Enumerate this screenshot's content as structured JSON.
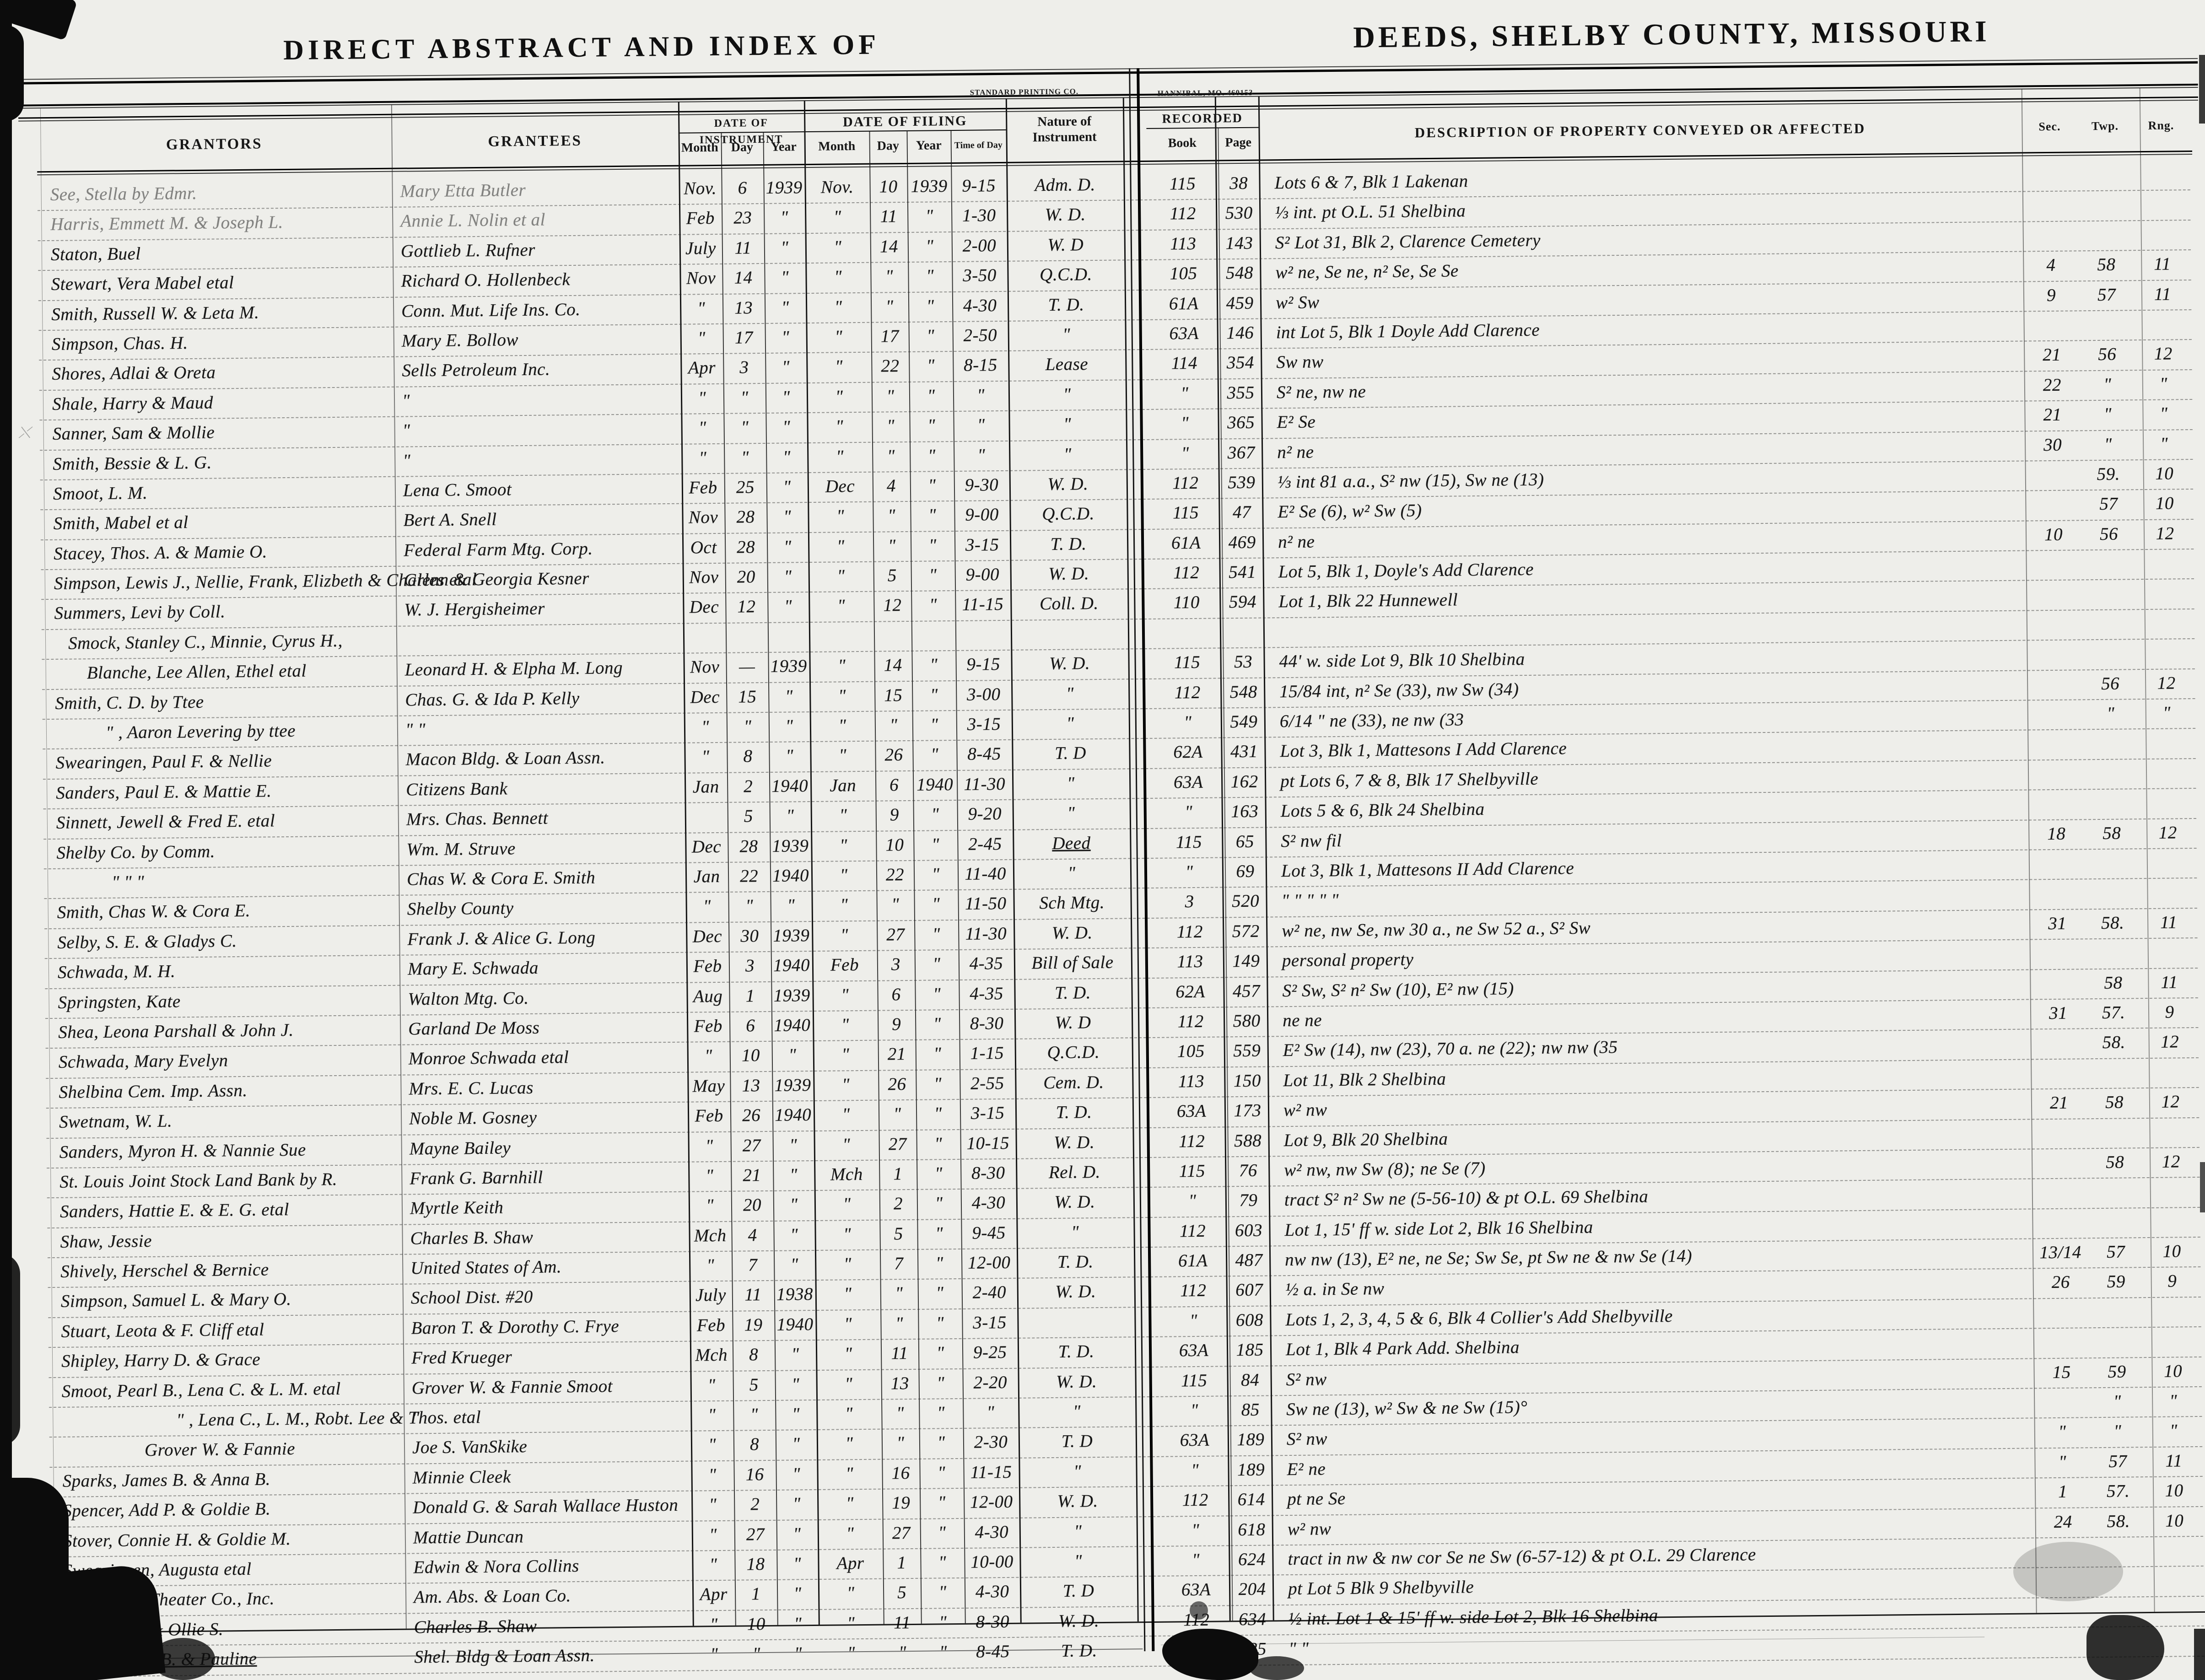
{
  "titles": {
    "left": "DIRECT ABSTRACT AND INDEX OF",
    "right": "DEEDS, SHELBY COUNTY, MISSOURI"
  },
  "printer": {
    "left_small": "STANDARD PRINTING CO.",
    "right_small": "HANNIBAL, MO. 460153"
  },
  "headers": {
    "grantors": "GRANTORS",
    "grantees": "GRANTEES",
    "date_of_instrument": "DATE OF INSTRUMENT",
    "date_of_filing": "DATE OF FILING",
    "month": "Month",
    "day": "Day",
    "year": "Year",
    "time_of_day": "Time of Day",
    "nature": "Nature of Instrument",
    "recorded": "RECORDED",
    "book": "Book",
    "page": "Page",
    "description": "DESCRIPTION OF PROPERTY CONVEYED OR AFFECTED",
    "sec": "Sec.",
    "twp": "Twp.",
    "rng": "Rng."
  },
  "rows": [
    {
      "g": "See, Stella by Edmr.",
      "e": "Mary Etta Butler",
      "im": "Nov.",
      "idy": "6",
      "iy": "1939",
      "fm": "Nov.",
      "fdy": "10",
      "fy": "1939",
      "t": "9-15",
      "n": "Adm. D.",
      "bk": "115",
      "pg": "38",
      "d": "Lots 6 & 7, Blk 1  Lakenan",
      "s": "",
      "tw": "",
      "rg": "",
      "gf": 1,
      "ef": 1
    },
    {
      "g": "Harris, Emmett M. & Joseph L.",
      "e": "Annie L. Nolin et al",
      "im": "Feb",
      "idy": "23",
      "iy": "\"",
      "fm": "\"",
      "fdy": "11",
      "fy": "\"",
      "t": "1-30",
      "n": "W. D.",
      "bk": "112",
      "pg": "530",
      "d": "⅓ int. pt O.L. 51  Shelbina",
      "s": "",
      "tw": "",
      "rg": "",
      "gf": 1,
      "ef": 1
    },
    {
      "g": "Staton, Buel",
      "e": "Gottlieb L. Rufner",
      "im": "July",
      "idy": "11",
      "iy": "\"",
      "fm": "\"",
      "fdy": "14",
      "fy": "\"",
      "t": "2-00",
      "n": "W. D",
      "bk": "113",
      "pg": "143",
      "d": "S² Lot 31, Blk 2, Clarence Cemetery",
      "s": "",
      "tw": "",
      "rg": ""
    },
    {
      "g": "Stewart, Vera Mabel etal",
      "e": "Richard O. Hollenbeck",
      "im": "Nov",
      "idy": "14",
      "iy": "\"",
      "fm": "\"",
      "fdy": "\"",
      "fy": "\"",
      "t": "3-50",
      "n": "Q.C.D.",
      "bk": "105",
      "pg": "548",
      "d": "w² ne, Se ne, n² Se, Se Se",
      "s": "4",
      "tw": "58",
      "rg": "11"
    },
    {
      "g": "Smith, Russell W. & Leta M.",
      "e": "Conn. Mut. Life Ins. Co.",
      "im": "\"",
      "idy": "13",
      "iy": "\"",
      "fm": "\"",
      "fdy": "\"",
      "fy": "\"",
      "t": "4-30",
      "n": "T. D.",
      "bk": "61A",
      "pg": "459",
      "d": "w² Sw",
      "s": "9",
      "tw": "57",
      "rg": "11"
    },
    {
      "g": "Simpson, Chas. H.",
      "e": "Mary E. Bollow",
      "im": "\"",
      "idy": "17",
      "iy": "\"",
      "fm": "\"",
      "fdy": "17",
      "fy": "\"",
      "t": "2-50",
      "n": "\"",
      "bk": "63A",
      "pg": "146",
      "d": "int Lot 5, Blk 1  Doyle Add  Clarence",
      "s": "",
      "tw": "",
      "rg": ""
    },
    {
      "g": "Shores, Adlai & Oreta",
      "e": "Sells Petroleum Inc.",
      "im": "Apr",
      "idy": "3",
      "iy": "\"",
      "fm": "\"",
      "fdy": "22",
      "fy": "\"",
      "t": "8-15",
      "n": "Lease",
      "bk": "114",
      "pg": "354",
      "d": "Sw nw",
      "s": "21",
      "tw": "56",
      "rg": "12"
    },
    {
      "g": "Shale, Harry & Maud",
      "e": "\"",
      "im": "\"",
      "idy": "\"",
      "iy": "\"",
      "fm": "\"",
      "fdy": "\"",
      "fy": "\"",
      "t": "\"",
      "n": "\"",
      "bk": "\"",
      "pg": "355",
      "d": "S² ne, nw ne",
      "s": "22",
      "tw": "\"",
      "rg": "\""
    },
    {
      "g": "Sanner, Sam & Mollie",
      "e": "\"",
      "im": "\"",
      "idy": "\"",
      "iy": "\"",
      "fm": "\"",
      "fdy": "\"",
      "fy": "\"",
      "t": "\"",
      "n": "\"",
      "bk": "\"",
      "pg": "365",
      "d": "E² Se",
      "s": "21",
      "tw": "\"",
      "rg": "\""
    },
    {
      "g": "Smith, Bessie & L. G.",
      "e": "\"",
      "im": "\"",
      "idy": "\"",
      "iy": "\"",
      "fm": "\"",
      "fdy": "\"",
      "fy": "\"",
      "t": "\"",
      "n": "\"",
      "bk": "\"",
      "pg": "367",
      "d": "n² ne",
      "s": "30",
      "tw": "\"",
      "rg": "\""
    },
    {
      "g": "Smoot, L. M.",
      "e": "Lena C. Smoot",
      "im": "Feb",
      "idy": "25",
      "iy": "\"",
      "fm": "Dec",
      "fdy": "4",
      "fy": "\"",
      "t": "9-30",
      "n": "W. D.",
      "bk": "112",
      "pg": "539",
      "d": "⅓ int 81 a.a., S² nw (15), Sw ne (13)",
      "s": "",
      "tw": "59.",
      "rg": "10"
    },
    {
      "g": "Smith, Mabel et al",
      "e": "Bert A. Snell",
      "im": "Nov",
      "idy": "28",
      "iy": "\"",
      "fm": "\"",
      "fdy": "\"",
      "fy": "\"",
      "t": "9-00",
      "n": "Q.C.D.",
      "bk": "115",
      "pg": "47",
      "d": "E² Se (6), w² Sw (5)",
      "s": "",
      "tw": "57",
      "rg": "10"
    },
    {
      "g": "Stacey, Thos. A. & Mamie O.",
      "e": "Federal Farm Mtg. Corp.",
      "im": "Oct",
      "idy": "28",
      "iy": "\"",
      "fm": "\"",
      "fdy": "\"",
      "fy": "\"",
      "t": "3-15",
      "n": "T. D.",
      "bk": "61A",
      "pg": "469",
      "d": "n² ne",
      "s": "10",
      "tw": "56",
      "rg": "12"
    },
    {
      "g": "Simpson, Lewis J., Nellie, Frank, Elizbeth & Charles etal",
      "e": "Glenn & Georgia Kesner",
      "im": "Nov",
      "idy": "20",
      "iy": "\"",
      "fm": "\"",
      "fdy": "5",
      "fy": "\"",
      "t": "9-00",
      "n": "W. D.",
      "bk": "112",
      "pg": "541",
      "d": "Lot 5, Blk 1,  Doyle's Add  Clarence",
      "s": "",
      "tw": "",
      "rg": ""
    },
    {
      "g": "Summers, Levi by Coll.",
      "e": "W. J. Hergisheimer",
      "im": "Dec",
      "idy": "12",
      "iy": "\"",
      "fm": "\"",
      "fdy": "12",
      "fy": "\"",
      "t": "11-15",
      "n": "Coll. D.",
      "bk": "110",
      "pg": "594",
      "d": "Lot 1, Blk 22  Hunnewell",
      "s": "",
      "tw": "",
      "rg": ""
    },
    {
      "g": "Smock, Stanley C., Minnie, Cyrus H.,",
      "e": "",
      "im": "",
      "idy": "",
      "iy": "",
      "fm": "",
      "fdy": "",
      "fy": "",
      "t": "",
      "n": "",
      "bk": "",
      "pg": "",
      "d": "",
      "s": "",
      "tw": "",
      "rg": "",
      "pad": 30
    },
    {
      "g": "Blanche, Lee Allen, Ethel etal",
      "e": "Leonard H. & Elpha M. Long",
      "im": "Nov",
      "idy": "—",
      "iy": "1939",
      "fm": "\"",
      "fdy": "14",
      "fy": "\"",
      "t": "9-15",
      "n": "W. D.",
      "bk": "115",
      "pg": "53",
      "d": "44' w. side Lot 9, Blk 10 Shelbina",
      "s": "",
      "tw": "",
      "rg": "",
      "pad": 70
    },
    {
      "g": "Smith, C. D. by Ttee",
      "e": "Chas. G. & Ida P. Kelly",
      "im": "Dec",
      "idy": "15",
      "iy": "\"",
      "fm": "\"",
      "fdy": "15",
      "fy": "\"",
      "t": "3-00",
      "n": "\"",
      "bk": "112",
      "pg": "548",
      "d": "15/84 int, n² Se (33), nw Sw (34)",
      "s": "",
      "tw": "56",
      "rg": "12"
    },
    {
      "g": "\" , Aaron Levering by ttee",
      "e": "\"    \"",
      "im": "\"",
      "idy": "\"",
      "iy": "\"",
      "fm": "\"",
      "fdy": "\"",
      "fy": "\"",
      "t": "3-15",
      "n": "\"",
      "bk": "\"",
      "pg": "549",
      "d": "6/14 \" ne (33), ne nw (33",
      "s": "",
      "tw": "\"",
      "rg": "\"",
      "pad": 110
    },
    {
      "g": "Swearingen, Paul F. & Nellie",
      "e": "Macon Bldg. & Loan Assn.",
      "im": "\"",
      "idy": "8",
      "iy": "\"",
      "fm": "\"",
      "fdy": "26",
      "fy": "\"",
      "t": "8-45",
      "n": "T. D",
      "bk": "62A",
      "pg": "431",
      "d": "Lot 3, Blk 1,  Mattesons I  Add  Clarence",
      "s": "",
      "tw": "",
      "rg": ""
    },
    {
      "g": "Sanders, Paul E. & Mattie E.",
      "e": "Citizens Bank",
      "im": "Jan",
      "idy": "2",
      "iy": "1940",
      "fm": "Jan",
      "fdy": "6",
      "fy": "1940",
      "t": "11-30",
      "n": "\"",
      "bk": "63A",
      "pg": "162",
      "d": "pt Lots 6, 7 & 8, Blk 17 Shelbyville",
      "s": "",
      "tw": "",
      "rg": ""
    },
    {
      "g": "Sinnett, Jewell & Fred E. etal",
      "e": "Mrs. Chas. Bennett",
      "im": "",
      "idy": "5",
      "iy": "\"",
      "fm": "\"",
      "fdy": "9",
      "fy": "\"",
      "t": "9-20",
      "n": "\"",
      "bk": "\"",
      "pg": "163",
      "d": "Lots 5 & 6,  Blk 24   Shelbina",
      "s": "",
      "tw": "",
      "rg": ""
    },
    {
      "g": "Shelby Co. by Comm.",
      "e": "Wm. M. Struve",
      "im": "Dec",
      "idy": "28",
      "iy": "1939",
      "fm": "\"",
      "fdy": "10",
      "fy": "\"",
      "t": "2-45",
      "n": "Deed",
      "bk": "115",
      "pg": "65",
      "d": "S² nw  fil",
      "s": "18",
      "tw": "58",
      "rg": "12",
      "nu": 1
    },
    {
      "g": "\"     \"     \"",
      "e": "Chas W. & Cora E. Smith",
      "im": "Jan",
      "idy": "22",
      "iy": "1940",
      "fm": "\"",
      "fdy": "22",
      "fy": "\"",
      "t": "11-40",
      "n": "\"",
      "bk": "\"",
      "pg": "69",
      "d": "Lot 3, Blk 1,  Mattesons II  Add  Clarence",
      "s": "",
      "tw": "",
      "rg": "",
      "pad": 120
    },
    {
      "g": "Smith, Chas W. & Cora E.",
      "e": "Shelby County",
      "im": "\"",
      "idy": "\"",
      "iy": "\"",
      "fm": "\"",
      "fdy": "\"",
      "fy": "\"",
      "t": "11-50",
      "n": "Sch Mtg.",
      "bk": "3",
      "pg": "520",
      "d": "\"      \"      \"      \"      \"",
      "s": "",
      "tw": "",
      "rg": ""
    },
    {
      "g": "Selby, S. E. & Gladys C.",
      "e": "Frank J. & Alice G. Long",
      "im": "Dec",
      "idy": "30",
      "iy": "1939",
      "fm": "\"",
      "fdy": "27",
      "fy": "\"",
      "t": "11-30",
      "n": "W. D.",
      "bk": "112",
      "pg": "572",
      "d": "w² ne, nw Se, nw 30 a., ne Sw 52 a., S² Sw",
      "s": "31",
      "tw": "58.",
      "rg": "11"
    },
    {
      "g": "Schwada, M. H.",
      "e": "Mary E. Schwada",
      "im": "Feb",
      "idy": "3",
      "iy": "1940",
      "fm": "Feb",
      "fdy": "3",
      "fy": "\"",
      "t": "4-35",
      "n": "Bill of Sale",
      "bk": "113",
      "pg": "149",
      "d": "personal property",
      "s": "",
      "tw": "",
      "rg": ""
    },
    {
      "g": "Springsten, Kate",
      "e": "Walton Mtg. Co.",
      "im": "Aug",
      "idy": "1",
      "iy": "1939",
      "fm": "\"",
      "fdy": "6",
      "fy": "\"",
      "t": "4-35",
      "n": "T. D.",
      "bk": "62A",
      "pg": "457",
      "d": "S² Sw, S² n² Sw (10), E² nw (15)",
      "s": "",
      "tw": "58",
      "rg": "11"
    },
    {
      "g": "Shea, Leona Parshall & John J.",
      "e": "Garland De Moss",
      "im": "Feb",
      "idy": "6",
      "iy": "1940",
      "fm": "\"",
      "fdy": "9",
      "fy": "\"",
      "t": "8-30",
      "n": "W. D",
      "bk": "112",
      "pg": "580",
      "d": "ne ne",
      "s": "31",
      "tw": "57.",
      "rg": "9"
    },
    {
      "g": "Schwada, Mary Evelyn",
      "e": "Monroe Schwada etal",
      "im": "\"",
      "idy": "10",
      "iy": "\"",
      "fm": "\"",
      "fdy": "21",
      "fy": "\"",
      "t": "1-15",
      "n": "Q.C.D.",
      "bk": "105",
      "pg": "559",
      "d": "E² Sw (14), nw (23), 70 a. ne (22);  nw nw (35",
      "s": "",
      "tw": "58.",
      "rg": "12"
    },
    {
      "g": "Shelbina Cem. Imp. Assn.",
      "e": "Mrs. E. C. Lucas",
      "im": "May",
      "idy": "13",
      "iy": "1939",
      "fm": "\"",
      "fdy": "26",
      "fy": "\"",
      "t": "2-55",
      "n": "Cem. D.",
      "bk": "113",
      "pg": "150",
      "d": "Lot 11,  Blk 2   Shelbina",
      "s": "",
      "tw": "",
      "rg": ""
    },
    {
      "g": "Swetnam, W. L.",
      "e": "Noble M. Gosney",
      "im": "Feb",
      "idy": "26",
      "iy": "1940",
      "fm": "\"",
      "fdy": "\"",
      "fy": "\"",
      "t": "3-15",
      "n": "T. D.",
      "bk": "63A",
      "pg": "173",
      "d": "w² nw",
      "s": "21",
      "tw": "58",
      "rg": "12"
    },
    {
      "g": "Sanders, Myron H. & Nannie Sue",
      "e": "Mayne Bailey",
      "im": "\"",
      "idy": "27",
      "iy": "\"",
      "fm": "\"",
      "fdy": "27",
      "fy": "\"",
      "t": "10-15",
      "n": "W. D.",
      "bk": "112",
      "pg": "588",
      "d": "Lot 9,  Blk 20   Shelbina",
      "s": "",
      "tw": "",
      "rg": ""
    },
    {
      "g": "St. Louis Joint Stock Land Bank by R.",
      "e": "Frank G. Barnhill",
      "im": "\"",
      "idy": "21",
      "iy": "\"",
      "fm": "Mch",
      "fdy": "1",
      "fy": "\"",
      "t": "8-30",
      "n": "Rel. D.",
      "bk": "115",
      "pg": "76",
      "d": "w² nw, nw Sw (8); ne Se (7)",
      "s": "",
      "tw": "58",
      "rg": "12"
    },
    {
      "g": "Sanders, Hattie E. & E. G. etal",
      "e": "Myrtle Keith",
      "im": "\"",
      "idy": "20",
      "iy": "\"",
      "fm": "\"",
      "fdy": "2",
      "fy": "\"",
      "t": "4-30",
      "n": "W. D.",
      "bk": "\"",
      "pg": "79",
      "d": "tract S² n² Sw ne (5-56-10)  & pt O.L. 69 Shelbina",
      "s": "",
      "tw": "",
      "rg": ""
    },
    {
      "g": "Shaw, Jessie",
      "e": "Charles B. Shaw",
      "im": "Mch",
      "idy": "4",
      "iy": "\"",
      "fm": "\"",
      "fdy": "5",
      "fy": "\"",
      "t": "9-45",
      "n": "\"",
      "bk": "112",
      "pg": "603",
      "d": "Lot 1, 15' ff w. side Lot 2,  Blk 16    Shelbina",
      "s": "",
      "tw": "",
      "rg": ""
    },
    {
      "g": "Shively, Herschel & Bernice",
      "e": "United States of Am.",
      "im": "\"",
      "idy": "7",
      "iy": "\"",
      "fm": "\"",
      "fdy": "7",
      "fy": "\"",
      "t": "12-00",
      "n": "T. D.",
      "bk": "61A",
      "pg": "487",
      "d": "nw nw (13), E² ne, ne Se; Sw Se, pt Sw ne & nw Se (14)",
      "s": "13/14",
      "tw": "57",
      "rg": "10"
    },
    {
      "g": "Simpson, Samuel L. & Mary O.",
      "e": "School Dist. #20",
      "im": "July",
      "idy": "11",
      "iy": "1938",
      "fm": "\"",
      "fdy": "\"",
      "fy": "\"",
      "t": "2-40",
      "n": "W. D.",
      "bk": "112",
      "pg": "607",
      "d": "½ a. in Se nw",
      "s": "26",
      "tw": "59",
      "rg": "9"
    },
    {
      "g": "Stuart, Leota & F. Cliff etal",
      "e": "Baron T. & Dorothy C. Frye",
      "im": "Feb",
      "idy": "19",
      "iy": "1940",
      "fm": "\"",
      "fdy": "\"",
      "fy": "\"",
      "t": "3-15",
      "n": "",
      "bk": "\"",
      "pg": "608",
      "d": "Lots 1, 2, 3, 4, 5 & 6,  Blk 4  Collier's Add Shelbyville",
      "s": "",
      "tw": "",
      "rg": ""
    },
    {
      "g": "Shipley, Harry D. & Grace",
      "e": "Fred Krueger",
      "im": "Mch",
      "idy": "8",
      "iy": "\"",
      "fm": "\"",
      "fdy": "11",
      "fy": "\"",
      "t": "9-25",
      "n": "T. D.",
      "bk": "63A",
      "pg": "185",
      "d": "Lot 1,  Blk 4   Park Add.   Shelbina",
      "s": "",
      "tw": "",
      "rg": ""
    },
    {
      "g": "Smoot, Pearl B., Lena C. & L. M. etal",
      "e": "Grover W. & Fannie Smoot",
      "im": "\"",
      "idy": "5",
      "iy": "\"",
      "fm": "\"",
      "fdy": "13",
      "fy": "\"",
      "t": "2-20",
      "n": "W. D.",
      "bk": "115",
      "pg": "84",
      "d": "S² nw",
      "s": "15",
      "tw": "59",
      "rg": "10"
    },
    {
      "g": "\" , Lena C., L. M., Robt. Lee & Thos. etal",
      "e": "\"",
      "im": "\"",
      "idy": "\"",
      "iy": "\"",
      "fm": "\"",
      "fdy": "\"",
      "fy": "\"",
      "t": "\"",
      "n": "\"",
      "bk": "\"",
      "pg": "85",
      "d": "Sw ne (13), w² Sw & ne Sw (15)°",
      "s": "",
      "tw": "\"",
      "rg": "\"",
      "pad": 250
    },
    {
      "g": "Grover W. & Fannie",
      "e": "Joe S. VanSkike",
      "im": "\"",
      "idy": "8",
      "iy": "\"",
      "fm": "\"",
      "fdy": "\"",
      "fy": "\"",
      "t": "2-30",
      "n": "T. D",
      "bk": "63A",
      "pg": "189",
      "d": "S² nw",
      "s": "\"",
      "tw": "\"",
      "rg": "\"",
      "pad": 180
    },
    {
      "g": "Sparks, James B. & Anna B.",
      "e": "Minnie Cleek",
      "im": "\"",
      "idy": "16",
      "iy": "\"",
      "fm": "\"",
      "fdy": "16",
      "fy": "\"",
      "t": "11-15",
      "n": "\"",
      "bk": "\"",
      "pg": "189",
      "d": "E² ne",
      "s": "\"",
      "tw": "57",
      "rg": "11"
    },
    {
      "g": "Spencer, Add P. & Goldie B.",
      "e": "Donald G. & Sarah Wallace Huston",
      "im": "\"",
      "idy": "2",
      "iy": "\"",
      "fm": "\"",
      "fdy": "19",
      "fy": "\"",
      "t": "12-00",
      "n": "W. D.",
      "bk": "112",
      "pg": "614",
      "d": "pt ne Se",
      "s": "1",
      "tw": "57.",
      "rg": "10"
    },
    {
      "g": "Stover, Connie H. & Goldie M.",
      "e": "Mattie Duncan",
      "im": "\"",
      "idy": "27",
      "iy": "\"",
      "fm": "\"",
      "fdy": "27",
      "fy": "\"",
      "t": "4-30",
      "n": "\"",
      "bk": "\"",
      "pg": "618",
      "d": "w² nw",
      "s": "24",
      "tw": "58.",
      "rg": "10"
    },
    {
      "g": "Swearingen, Augusta etal",
      "e": "Edwin & Nora Collins",
      "im": "\"",
      "idy": "18",
      "iy": "\"",
      "fm": "Apr",
      "fdy": "1",
      "fy": "\"",
      "t": "10-00",
      "n": "\"",
      "bk": "\"",
      "pg": "624",
      "d": "tract in nw & nw cor Se ne Sw (6-57-12)  & pt O.L. 29  Clarence",
      "s": "",
      "tw": "",
      "rg": ""
    },
    {
      "g": "Shelbyville Theater Co., Inc.",
      "e": "Am. Abs. & Loan Co.",
      "im": "Apr",
      "idy": "1",
      "iy": "\"",
      "fm": "\"",
      "fdy": "5",
      "fy": "\"",
      "t": "4-30",
      "n": "T. D",
      "bk": "63A",
      "pg": "204",
      "d": "pt Lot 5   Blk 9   Shelbyville",
      "s": "",
      "tw": "",
      "rg": ""
    },
    {
      "g": "Shaw, Wm. & Ollie S.",
      "e": "Charles B. Shaw",
      "im": "\"",
      "idy": "10",
      "iy": "\"",
      "fm": "\"",
      "fdy": "11",
      "fy": "\"",
      "t": "8-30",
      "n": "W. D.",
      "bk": "112",
      "pg": "634",
      "d": "½ int. Lot 1 & 15' ff w. side Lot 2,  Blk 16    Shelbina",
      "s": "",
      "tw": "",
      "rg": ""
    },
    {
      "g": "\" , Chas. B. & Pauline",
      "e": "Shel. Bldg & Loan Assn.",
      "im": "\"",
      "idy": "\"",
      "iy": "\"",
      "fm": "\"",
      "fdy": "\"",
      "fy": "\"",
      "t": "8-45",
      "n": "T. D.",
      "bk": "61A",
      "pg": "585",
      "d": "\"        \"",
      "s": "",
      "tw": "",
      "rg": "",
      "pad": 60,
      "gu": 1
    }
  ]
}
